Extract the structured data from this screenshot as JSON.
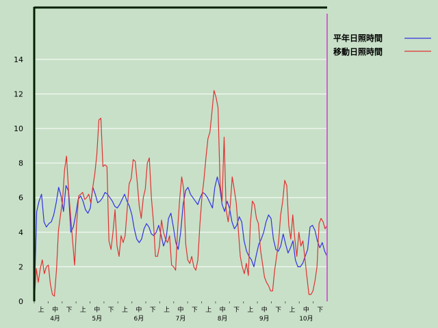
{
  "chart_data": {
    "type": "line",
    "y_ticks": [
      "0",
      "2",
      "4",
      "6",
      "8",
      "10",
      "12",
      "14"
    ],
    "ylim": [
      0,
      17
    ],
    "grid": true,
    "legend_position": "top-right",
    "x_sub_labels": [
      "上",
      "中",
      "下",
      "上",
      "中",
      "下",
      "上",
      "中",
      "下",
      "上",
      "中",
      "下",
      "上",
      "中",
      "下",
      "上",
      "中",
      "下",
      "上",
      "中",
      "下"
    ],
    "x_month_labels": [
      "4月",
      "5月",
      "6月",
      "7月",
      "8月",
      "9月",
      "10月"
    ],
    "x_range": [
      0,
      210
    ],
    "series": [
      {
        "name": "平年日照時間",
        "color": "#3030e0",
        "values": [
          0,
          5.2,
          5.8,
          6.2,
          4.6,
          4.3,
          4.5,
          4.6,
          5.0,
          5.7,
          6.6,
          6.1,
          5.2,
          6.7,
          6.4,
          4.0,
          4.3,
          5.0,
          5.9,
          6.1,
          5.8,
          5.3,
          5.1,
          5.4,
          6.6,
          6.2,
          5.7,
          5.8,
          6.0,
          6.3,
          6.2,
          6.0,
          5.8,
          5.5,
          5.4,
          5.6,
          5.9,
          6.2,
          5.8,
          5.5,
          5.0,
          4.2,
          3.6,
          3.4,
          3.6,
          4.2,
          4.5,
          4.3,
          3.9,
          3.8,
          4.0,
          4.4,
          3.8,
          3.2,
          3.6,
          4.8,
          5.1,
          4.3,
          3.4,
          3.0,
          4.0,
          5.6,
          6.4,
          6.6,
          6.2,
          6.0,
          5.8,
          5.6,
          6.0,
          6.3,
          6.2,
          6.0,
          5.7,
          5.4,
          6.6,
          7.2,
          6.6,
          5.6,
          5.2,
          5.8,
          5.4,
          4.6,
          4.2,
          4.4,
          4.9,
          4.6,
          3.5,
          2.9,
          2.6,
          2.4,
          2.0,
          2.7,
          3.3,
          3.6,
          4.0,
          4.6,
          5.0,
          4.8,
          3.6,
          3.0,
          2.9,
          3.2,
          3.9,
          3.3,
          2.8,
          3.1,
          3.5,
          2.4,
          2.0,
          2.0,
          2.2,
          2.6,
          3.0,
          4.3,
          4.4,
          4.1,
          3.5,
          3.1,
          3.4,
          2.9,
          2.6
        ]
      },
      {
        "name": "移動日照時間",
        "color": "#e03030",
        "values": [
          0,
          1.9,
          1.1,
          1.9,
          2.4,
          1.6,
          2.0,
          2.1,
          1.0,
          0.4,
          0.3,
          1.8,
          4.1,
          5.0,
          5.8,
          7.6,
          8.4,
          6.4,
          5.0,
          3.5,
          2.1,
          4.5,
          6.1,
          6.2,
          6.3,
          5.9,
          6.0,
          6.2,
          5.7,
          6.6,
          7.4,
          8.5,
          10.5,
          10.6,
          7.8,
          7.9,
          7.8,
          3.5,
          3.0,
          4.0,
          5.3,
          3.2,
          2.6,
          3.8,
          3.4,
          3.8,
          5.3,
          6.8,
          7.1,
          8.2,
          8.1,
          6.9,
          5.5,
          4.8,
          6.0,
          6.5,
          8.0,
          8.3,
          6.0,
          4.6,
          2.6,
          2.6,
          3.2,
          4.7,
          4.0,
          3.6,
          3.4,
          3.8,
          2.1,
          2.0,
          1.8,
          4.2,
          5.9,
          7.2,
          6.5,
          3.3,
          2.4,
          2.2,
          2.6,
          2.0,
          1.8,
          2.4,
          4.4,
          6.0,
          7.0,
          8.3,
          9.4,
          9.8,
          11.0,
          12.2,
          11.8,
          11.2,
          6.8,
          5.8,
          9.5,
          5.3,
          4.6,
          5.5,
          7.2,
          6.5,
          5.7,
          4.2,
          2.6,
          2.0,
          1.6,
          2.2,
          1.5,
          4.5,
          5.8,
          5.6,
          4.8,
          4.5,
          3.0,
          2.2,
          1.4,
          1.1,
          0.9,
          0.6,
          0.6,
          1.8,
          2.6,
          3.5,
          5.0,
          5.8,
          7.0,
          6.7,
          4.4,
          3.6,
          5.0,
          3.6,
          2.6,
          4.0,
          3.2,
          3.5,
          2.5,
          1.4,
          0.4,
          0.4,
          0.6,
          1.2,
          2.0,
          4.5,
          4.8,
          4.6,
          4.2,
          4.4
        ]
      }
    ]
  }
}
